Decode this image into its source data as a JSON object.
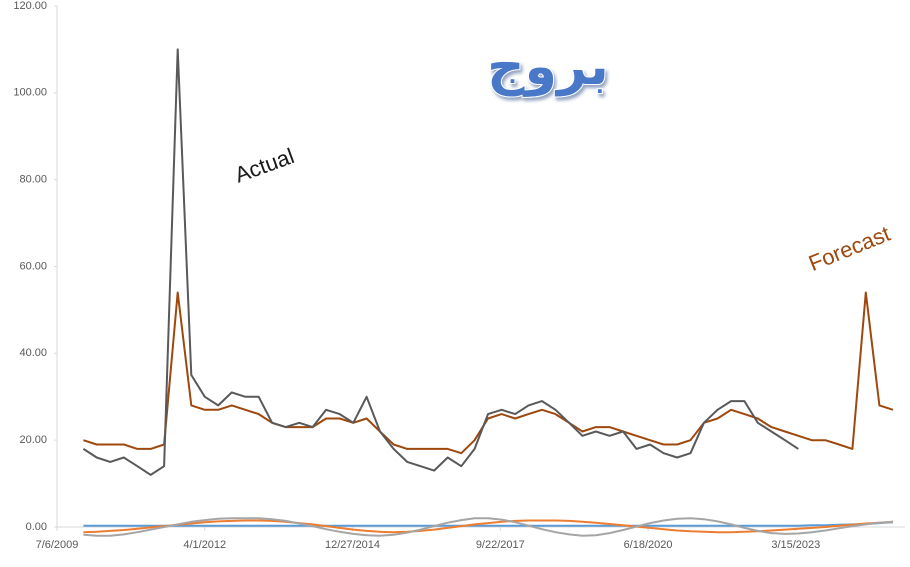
{
  "chart_data": {
    "type": "line",
    "title": "بروج",
    "annotations": [
      {
        "text": "Actual",
        "color": "#1a1a1a"
      },
      {
        "text": "Forecast",
        "color": "#9e480e"
      }
    ],
    "x": [
      "1/1/2010",
      "4/1/2010",
      "7/1/2010",
      "10/1/2010",
      "1/1/2011",
      "4/1/2011",
      "7/1/2011",
      "10/1/2011",
      "1/1/2012",
      "4/1/2012",
      "7/1/2012",
      "10/1/2012",
      "1/1/2013",
      "4/1/2013",
      "7/1/2013",
      "10/1/2013",
      "1/1/2014",
      "4/1/2014",
      "7/1/2014",
      "10/1/2014",
      "1/1/2015",
      "4/1/2015",
      "7/1/2015",
      "10/1/2015",
      "1/1/2016",
      "4/1/2016",
      "7/1/2016",
      "10/1/2016",
      "1/1/2017",
      "4/1/2017",
      "7/1/2017",
      "10/1/2017",
      "1/1/2018",
      "4/1/2018",
      "7/1/2018",
      "10/1/2018",
      "1/1/2019",
      "4/1/2019",
      "7/1/2019",
      "10/1/2019",
      "1/1/2020",
      "4/1/2020",
      "7/1/2020",
      "10/1/2020",
      "1/1/2021",
      "4/1/2021",
      "7/1/2021",
      "10/1/2021",
      "1/1/2022",
      "4/1/2022",
      "7/1/2022",
      "10/1/2022",
      "1/1/2023",
      "4/1/2023",
      "7/1/2023",
      "10/1/2023",
      "1/1/2024",
      "4/1/2024",
      "7/1/2024",
      "10/1/2024",
      "1/1/2025"
    ],
    "series": [
      {
        "color": "#5b9bd5",
        "values": [
          0.3,
          0.3,
          0.3,
          0.3,
          0.3,
          0.3,
          0.3,
          0.3,
          0.3,
          0.3,
          0.3,
          0.3,
          0.3,
          0.3,
          0.3,
          0.3,
          0.3,
          0.3,
          0.3,
          0.3,
          0.3,
          0.3,
          0.3,
          0.3,
          0.3,
          0.3,
          0.3,
          0.3,
          0.3,
          0.3,
          0.3,
          0.3,
          0.3,
          0.3,
          0.3,
          0.3,
          0.3,
          0.3,
          0.3,
          0.3,
          0.3,
          0.3,
          0.3,
          0.3,
          0.3,
          0.3,
          0.3,
          0.3,
          0.3,
          0.3,
          0.3,
          0.3,
          0.3,
          0.3,
          0.4,
          0.4,
          0.5,
          0.6,
          0.7,
          0.9,
          1.1
        ]
      },
      {
        "color": "#ed7d31",
        "values": [
          -1.2,
          -1.1,
          -0.9,
          -0.7,
          -0.4,
          -0.1,
          0.2,
          0.5,
          0.8,
          1.1,
          1.3,
          1.4,
          1.5,
          1.5,
          1.4,
          1.2,
          0.9,
          0.6,
          0.2,
          -0.2,
          -0.6,
          -0.9,
          -1.1,
          -1.2,
          -1.1,
          -0.9,
          -0.6,
          -0.2,
          0.2,
          0.6,
          0.9,
          1.2,
          1.4,
          1.5,
          1.5,
          1.5,
          1.4,
          1.2,
          1.0,
          0.7,
          0.4,
          0.1,
          -0.2,
          -0.5,
          -0.8,
          -1,
          -1.1,
          -1.2,
          -1.2,
          -1.1,
          -1,
          -0.8,
          -0.6,
          -0.4,
          -0.2,
          0,
          0.3,
          0.5,
          0.8,
          1,
          1.2
        ]
      },
      {
        "color": "#a5a5a5",
        "values": [
          -1.8,
          -2,
          -2,
          -1.7,
          -1.2,
          -0.6,
          0,
          0.6,
          1.2,
          1.6,
          1.9,
          2,
          2,
          2,
          1.8,
          1.4,
          0.8,
          0.2,
          -0.5,
          -1.1,
          -1.6,
          -1.9,
          -2,
          -1.8,
          -1.3,
          -0.6,
          0.2,
          1,
          1.6,
          2,
          2,
          1.7,
          1.1,
          0.3,
          -0.5,
          -1.2,
          -1.7,
          -2,
          -1.9,
          -1.4,
          -0.7,
          0.1,
          0.9,
          1.5,
          1.9,
          2,
          1.8,
          1.3,
          0.6,
          -0.2,
          -0.9,
          -1.4,
          -1.6,
          -1.5,
          -1.2,
          -0.8,
          -0.3,
          0.2,
          0.6,
          1,
          1.2
        ]
      },
      {
        "color": "#9e480e",
        "values": [
          20,
          19,
          19,
          19,
          18,
          18,
          19,
          54,
          28,
          27,
          27,
          28,
          27,
          26,
          24,
          23,
          23,
          23,
          25,
          25,
          24,
          25,
          22,
          19,
          18,
          18,
          18,
          18,
          17,
          20,
          25,
          26,
          25,
          26,
          27,
          26,
          24,
          22,
          23,
          23,
          22,
          21,
          20,
          19,
          19,
          20,
          24,
          25,
          27,
          26,
          25,
          23,
          22,
          21,
          20,
          20,
          19,
          18,
          54,
          28,
          27
        ]
      },
      {
        "color": "#595959",
        "values": [
          18,
          16,
          15,
          16,
          14,
          12,
          14,
          110,
          35,
          30,
          28,
          31,
          30,
          30,
          24,
          23,
          24,
          23,
          27,
          26,
          24,
          30,
          22,
          18,
          15,
          14,
          13,
          16,
          14,
          18,
          26,
          27,
          26,
          28,
          29,
          27,
          24,
          21,
          22,
          21,
          22,
          18,
          19,
          17,
          16,
          17,
          24,
          27,
          29,
          29,
          24,
          22,
          20,
          18,
          null,
          null,
          null,
          null,
          null,
          null,
          null
        ]
      }
    ],
    "xlim": [
      "7/6/2009",
      "3/23/2025"
    ],
    "xticks": [
      "7/6/2009",
      "4/1/2012",
      "12/27/2014",
      "9/22/2017",
      "6/18/2020",
      "3/15/2023"
    ],
    "ylim": [
      0,
      120
    ],
    "yticks": [
      {
        "value": 0,
        "label": "0.00"
      },
      {
        "value": 20,
        "label": "20.00"
      },
      {
        "value": 40,
        "label": "40.00"
      },
      {
        "value": 60,
        "label": "60.00"
      },
      {
        "value": 80,
        "label": "80.00"
      },
      {
        "value": 100,
        "label": "100.00"
      },
      {
        "value": 120,
        "label": "120.00"
      }
    ],
    "grid": false
  }
}
